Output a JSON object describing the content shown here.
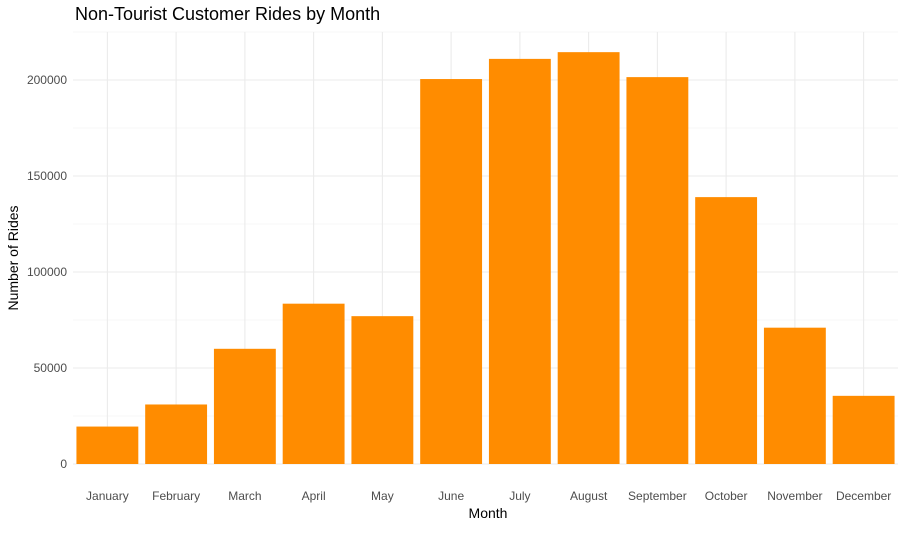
{
  "chart_data": {
    "type": "bar",
    "title": "Non-Tourist Customer Rides by Month",
    "xlabel": "Month",
    "ylabel": "Number of Rides",
    "categories": [
      "January",
      "February",
      "March",
      "April",
      "May",
      "June",
      "July",
      "August",
      "September",
      "October",
      "November",
      "December"
    ],
    "values": [
      19500,
      31000,
      60000,
      83500,
      77000,
      200500,
      211000,
      214500,
      201500,
      139000,
      71000,
      35500
    ],
    "ylim": [
      0,
      225000
    ],
    "yticks": [
      0,
      50000,
      100000,
      150000,
      200000
    ],
    "ytick_labels": [
      "0",
      "50000",
      "100000",
      "150000",
      "200000"
    ],
    "bar_color": "#FF8C00",
    "grid": true,
    "grid_major_color": "#EBEBEB",
    "grid_minor_color": "#F5F5F5",
    "legend": "none"
  }
}
